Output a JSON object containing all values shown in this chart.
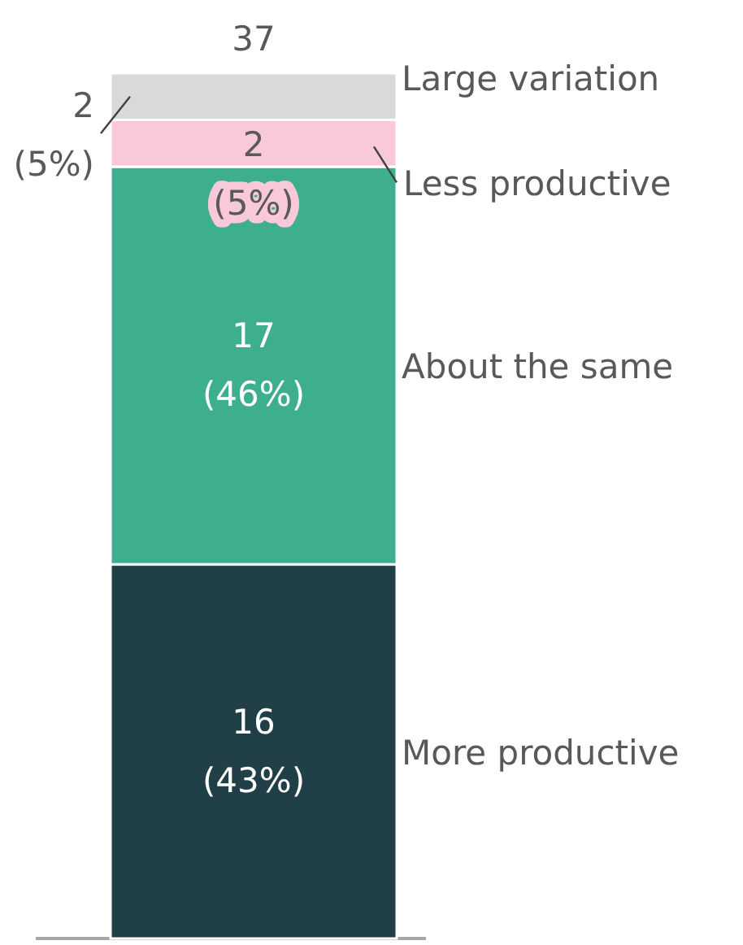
{
  "chart_data": {
    "type": "bar",
    "stacked": true,
    "categories": [
      null
    ],
    "series": [
      {
        "name": "More productive",
        "color": "#213f47",
        "values": [
          16
        ],
        "value_labels": [
          "16 (43%)"
        ]
      },
      {
        "name": "About the same",
        "color": "#3eaf8e",
        "values": [
          17
        ],
        "value_labels": [
          "17 (46%)"
        ]
      },
      {
        "name": "Less productive",
        "color": "#f9c9d9",
        "values": [
          2
        ],
        "value_labels": [
          "2 (5%)"
        ]
      },
      {
        "name": "Large variation",
        "color": "#d9d9d9",
        "values": [
          2
        ],
        "value_labels": [
          "2 (5%)"
        ]
      }
    ],
    "totals": [
      "37"
    ]
  }
}
